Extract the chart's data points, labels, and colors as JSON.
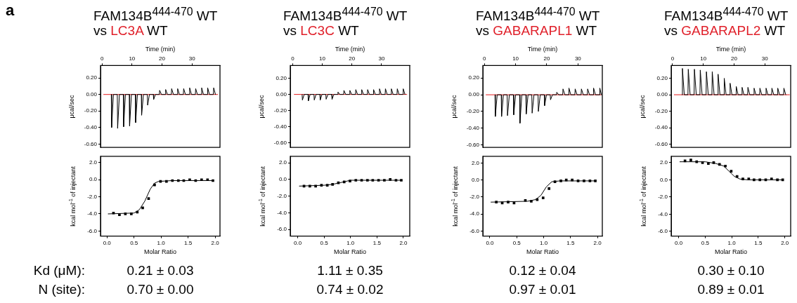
{
  "chart_data": [
    {
      "type": "line",
      "title": "FAM134B$^{444-470}$ WT",
      "subtitle": "vs LC3A WT",
      "xlabel": "Time (min)",
      "ylabel": "μcal/sec",
      "marker": "none",
      "annotations": [
        "a"
      ],
      "xlim": [
        -0.5,
        39.3
      ],
      "xticks": [
        0,
        10,
        20,
        30
      ],
      "ylim": [
        -0.64,
        0.35
      ],
      "yticks": [
        {
          "value": 0.2,
          "label": "0.20"
        },
        {
          "value": 0,
          "label": "0.00"
        },
        {
          "value": -0.2,
          "label": "-0.20"
        },
        {
          "value": -0.4,
          "label": "-0.40"
        },
        {
          "value": -0.6,
          "label": "-0.60"
        }
      ],
      "series": [
        {
          "color": "#000000",
          "x": [
            3.1,
            3.2,
            3.8,
            5.1,
            5.2,
            5.8,
            7.1,
            7.2,
            7.8,
            9.1,
            9.2,
            9.8,
            11.1,
            11.2,
            11.8,
            13.1,
            13.2,
            13.8,
            15.1,
            15.2,
            15.8,
            17.1,
            17.2,
            17.8,
            19.1,
            19.2,
            19.8,
            21.1,
            21.2,
            21.8,
            23.1,
            23.2,
            23.8,
            25.1,
            25.2,
            25.8,
            27.1,
            27.2,
            27.8,
            29.1,
            29.2,
            29.8,
            31.1,
            31.2,
            31.8,
            33.1,
            33.2,
            33.8,
            35.1,
            35.2,
            35.8,
            37.1,
            37.2,
            37.8
          ],
          "values": [
            0,
            -0.4,
            0,
            0,
            -0.41,
            0,
            0,
            -0.39,
            0,
            0,
            -0.38,
            0,
            0,
            -0.34,
            0,
            0,
            -0.25,
            0,
            0,
            -0.13,
            0,
            0,
            -0.06,
            0,
            0,
            0.05,
            0,
            0,
            0.06,
            0,
            0,
            0.07,
            0,
            0,
            0.07,
            0,
            0,
            0.07,
            0,
            0,
            0.08,
            0,
            0,
            0.07,
            0,
            0,
            0.08,
            0,
            0,
            0.08,
            0,
            0,
            0.08,
            0
          ]
        },
        {
          "color": "#e41a1c",
          "x": [
            0.5,
            38.5
          ],
          "values": [
            0,
            0
          ]
        }
      ]
    },
    {
      "type": "scatter",
      "xlabel": "Molar Ratio",
      "ylabel": "kcal mol$^{-1}$ of injectant",
      "marker": "square",
      "annotations": [
        "Kd (μM):",
        "N (site):",
        "0.21 ± 0.03",
        "0.70 ± 0.00"
      ],
      "xlim": [
        -0.12,
        2.09
      ],
      "xticks": [
        {
          "value": 0,
          "label": "0.0"
        },
        0.5,
        {
          "value": 1,
          "label": "1.0"
        },
        1.5,
        {
          "value": 2,
          "label": "2.0"
        }
      ],
      "ylim": [
        -6.6,
        2.75
      ],
      "yticks": [
        {
          "value": 2,
          "label": "2.0"
        },
        {
          "value": 0,
          "label": "0.0"
        },
        {
          "value": -2,
          "label": "-2.0"
        },
        {
          "value": -4,
          "label": "-4.0"
        },
        {
          "value": -6,
          "label": "-6.0"
        }
      ],
      "x": [
        0.12,
        0.23,
        0.34,
        0.45,
        0.56,
        0.66,
        0.77,
        0.88,
        0.99,
        1.1,
        1.21,
        1.32,
        1.42,
        1.53,
        1.64,
        1.75,
        1.86,
        1.96
      ],
      "series": [
        {
          "color": "#000000",
          "values": [
            -3.9,
            -4.1,
            -4.0,
            -4.0,
            -3.8,
            -3.3,
            -2.2,
            -0.6,
            -0.2,
            -0.2,
            -0.1,
            -0.1,
            -0.1,
            0.0,
            -0.1,
            0.0,
            0.0,
            -0.1
          ]
        },
        {
          "type": "line",
          "marker": "none",
          "color": "#000000",
          "x": [
            0.02,
            0.5,
            0.6,
            0.7,
            0.8,
            0.88,
            0.95,
            1.2,
            1.96
          ],
          "values": [
            -4.0,
            -3.9,
            -3.5,
            -2.5,
            -1.1,
            -0.4,
            -0.2,
            -0.1,
            -0.1
          ]
        }
      ]
    },
    {
      "type": "line",
      "title": "FAM134B$^{444-470}$ WT",
      "subtitle": "vs LC3C WT",
      "xlabel": "Time (min)",
      "ylabel": "μcal/sec",
      "marker": "none",
      "xlim": [
        -0.8,
        39.5
      ],
      "xticks": [
        0,
        10,
        20,
        30
      ],
      "ylim": [
        -0.66,
        0.36
      ],
      "yticks": [
        {
          "value": 0.2,
          "label": "0.20"
        },
        {
          "value": 0,
          "label": "0.00"
        },
        {
          "value": -0.2,
          "label": "-0.20"
        },
        {
          "value": -0.4,
          "label": "-0.40"
        },
        {
          "value": -0.6,
          "label": "-0.60"
        }
      ],
      "series": [
        {
          "color": "#000000",
          "x": [
            3.2,
            3.3,
            3.9,
            5.2,
            5.3,
            5.9,
            7.2,
            7.3,
            7.9,
            9.2,
            9.3,
            9.9,
            11.2,
            11.3,
            11.9,
            13.2,
            13.3,
            13.9,
            15.2,
            15.3,
            15.9,
            17.2,
            17.3,
            17.9,
            19.2,
            19.3,
            19.9,
            21.2,
            21.3,
            21.9,
            23.2,
            23.3,
            23.9,
            25.2,
            25.3,
            25.9,
            27.2,
            27.3,
            27.9,
            29.2,
            29.3,
            29.9,
            31.2,
            31.3,
            31.9,
            33.2,
            33.3,
            33.9,
            35.2,
            35.3,
            35.9,
            37.2,
            37.3,
            37.9
          ],
          "values": [
            0,
            -0.07,
            0,
            0,
            -0.08,
            0,
            0,
            -0.07,
            0,
            0,
            -0.07,
            0,
            0,
            -0.06,
            0,
            0,
            -0.06,
            0,
            0,
            0.03,
            0,
            0,
            0.05,
            0,
            0,
            0.05,
            0,
            0,
            0.06,
            0,
            0,
            0.06,
            0,
            0,
            0.06,
            0,
            0,
            0.06,
            0,
            0,
            0.07,
            0,
            0,
            0.07,
            0,
            0,
            0.07,
            0,
            0,
            0.07,
            0,
            0,
            0.07,
            0
          ]
        },
        {
          "color": "#e41a1c",
          "x": [
            0.5,
            38.5
          ],
          "values": [
            0,
            0
          ]
        }
      ]
    },
    {
      "type": "scatter",
      "xlabel": "Molar Ratio",
      "ylabel": "kcal mol$^{-1}$ of injectant",
      "marker": "square",
      "annotations": [
        "1.11 ± 0.35",
        "0.74 ± 0.02"
      ],
      "xlim": [
        -0.14,
        2.12
      ],
      "xticks": [
        {
          "value": 0,
          "label": "0.0"
        },
        0.5,
        {
          "value": 1,
          "label": "1.0"
        },
        1.5,
        {
          "value": 2,
          "label": "2.0"
        }
      ],
      "ylim": [
        -6.8,
        2.78
      ],
      "yticks": [
        {
          "value": 2,
          "label": "2.0"
        },
        {
          "value": 0,
          "label": "0.0"
        },
        {
          "value": -2,
          "label": "-2.0"
        },
        {
          "value": -4,
          "label": "-4.0"
        },
        {
          "value": -6,
          "label": "-6.0"
        }
      ],
      "x": [
        0.12,
        0.23,
        0.34,
        0.45,
        0.56,
        0.66,
        0.77,
        0.88,
        0.99,
        1.1,
        1.21,
        1.32,
        1.42,
        1.53,
        1.64,
        1.75,
        1.86,
        1.96
      ],
      "series": [
        {
          "color": "#000000",
          "values": [
            -0.8,
            -0.8,
            -0.8,
            -0.7,
            -0.7,
            -0.6,
            -0.4,
            -0.3,
            -0.2,
            -0.1,
            -0.1,
            -0.1,
            -0.1,
            -0.1,
            -0.1,
            0.0,
            -0.1,
            -0.1
          ]
        },
        {
          "type": "line",
          "marker": "none",
          "color": "#000000",
          "x": [
            0.03,
            0.5,
            0.65,
            0.8,
            1.0,
            1.3,
            1.96
          ],
          "values": [
            -0.8,
            -0.7,
            -0.6,
            -0.4,
            -0.1,
            -0.1,
            -0.1
          ]
        }
      ]
    },
    {
      "type": "line",
      "title": "FAM134B$^{444-470}$ WT",
      "subtitle": "vs GABARAPL1 WT",
      "xlabel": "Time (min)",
      "ylabel": "μcal/sec",
      "marker": "none",
      "xlim": [
        -0.5,
        37.8
      ],
      "xticks": [
        0,
        10,
        20,
        30
      ],
      "ylim": [
        -0.63,
        0.35
      ],
      "yticks": [
        {
          "value": 0.2,
          "label": "0.20"
        },
        {
          "value": 0,
          "label": "0.00"
        },
        {
          "value": -0.2,
          "label": "-0.20"
        },
        {
          "value": -0.4,
          "label": "-0.40"
        },
        {
          "value": -0.6,
          "label": "-0.60"
        }
      ],
      "series": [
        {
          "color": "#000000",
          "x": [
            3.4,
            3.5,
            4.1,
            5.4,
            5.5,
            6.1,
            7.3,
            7.4,
            8.0,
            9.3,
            9.4,
            10.0,
            11.3,
            11.4,
            12.0,
            13.3,
            13.4,
            14.0,
            15.2,
            15.3,
            15.9,
            17.2,
            17.3,
            17.9,
            19.2,
            19.3,
            19.9,
            21.1,
            21.2,
            21.8,
            23.1,
            23.2,
            23.8,
            25.1,
            25.2,
            25.8,
            27.0,
            27.1,
            27.7,
            29.0,
            29.1,
            29.7,
            31.0,
            31.1,
            31.7,
            33.0,
            33.1,
            33.7,
            34.9,
            35.0,
            35.6,
            36.9,
            37.0,
            37.5
          ],
          "values": [
            0,
            -0.26,
            0,
            0,
            -0.26,
            0,
            0,
            -0.25,
            0,
            0,
            -0.24,
            0,
            0,
            -0.34,
            0,
            0,
            -0.23,
            0,
            0,
            -0.22,
            0,
            0,
            -0.2,
            0,
            0,
            -0.13,
            0,
            0,
            -0.06,
            0,
            0,
            0.03,
            0,
            0,
            0.07,
            0,
            0,
            0.08,
            0,
            0,
            0.07,
            0,
            0,
            0.07,
            0,
            0,
            0.07,
            0,
            0,
            0.08,
            0,
            0,
            0.08,
            0
          ]
        },
        {
          "color": "#e41a1c",
          "x": [
            0.5,
            37.5
          ],
          "values": [
            0,
            0
          ]
        }
      ]
    },
    {
      "type": "scatter",
      "xlabel": "Molar Ratio",
      "ylabel": "kcal mol$^{-1}$ of injectant",
      "marker": "square",
      "annotations": [
        "0.12 ± 0.04",
        "0.97 ± 0.01"
      ],
      "xlim": [
        -0.13,
        2.09
      ],
      "xticks": [
        {
          "value": 0,
          "label": "0.0"
        },
        0.5,
        {
          "value": 1,
          "label": "1.0"
        },
        1.5,
        {
          "value": 2,
          "label": "2.0"
        }
      ],
      "ylim": [
        -6.6,
        2.8
      ],
      "yticks": [
        {
          "value": 2,
          "label": "2.0"
        },
        {
          "value": 0,
          "label": "0.0"
        },
        {
          "value": -2,
          "label": "-2.0"
        },
        {
          "value": -4,
          "label": "-4.0"
        },
        {
          "value": -6,
          "label": "-6.0"
        }
      ],
      "x": [
        0.12,
        0.23,
        0.34,
        0.45,
        0.56,
        0.66,
        0.77,
        0.88,
        0.99,
        1.1,
        1.21,
        1.32,
        1.42,
        1.53,
        1.64,
        1.75,
        1.86,
        1.96
      ],
      "series": [
        {
          "color": "#000000",
          "values": [
            -2.6,
            -2.7,
            -2.6,
            -2.7,
            null,
            -2.4,
            -2.5,
            -2.3,
            -2.1,
            -1.0,
            -0.2,
            -0.1,
            0.0,
            0.0,
            -0.1,
            -0.1,
            -0.1,
            -0.1
          ]
        },
        {
          "type": "line",
          "marker": "none",
          "color": "#000000",
          "x": [
            0.02,
            0.7,
            0.85,
            0.95,
            1.05,
            1.15,
            1.3,
            1.96
          ],
          "values": [
            -2.6,
            -2.5,
            -2.3,
            -1.8,
            -0.8,
            -0.2,
            -0.1,
            -0.1
          ]
        }
      ]
    },
    {
      "type": "line",
      "title": "FAM134B$^{444-470}$ WT",
      "subtitle": "vs GABARAPL2 WT",
      "xlabel": "Time (min)",
      "ylabel": "μcal/sec",
      "marker": "none",
      "xlim": [
        -0.45,
        38.4
      ],
      "xticks": [
        0,
        10,
        20,
        30
      ],
      "ylim": [
        -0.64,
        0.355
      ],
      "yticks": [
        {
          "value": 0.2,
          "label": "0.20"
        },
        {
          "value": 0,
          "label": "0.00"
        },
        {
          "value": -0.2,
          "label": "-0.20"
        },
        {
          "value": -0.4,
          "label": "-0.40"
        },
        {
          "value": -0.6,
          "label": "-0.60"
        }
      ],
      "series": [
        {
          "color": "#000000",
          "x": [
            3.1,
            3.2,
            3.8,
            5.0,
            5.1,
            5.7,
            7.0,
            7.1,
            7.7,
            8.9,
            9.0,
            9.6,
            10.9,
            11.0,
            11.6,
            12.8,
            12.9,
            13.5,
            14.7,
            14.8,
            15.4,
            16.7,
            16.8,
            17.4,
            18.6,
            18.7,
            19.3,
            20.6,
            20.7,
            21.3,
            22.5,
            22.6,
            23.2,
            24.4,
            24.5,
            25.1,
            26.4,
            26.5,
            27.1,
            28.3,
            28.4,
            29.0,
            30.3,
            30.4,
            31.0,
            32.2,
            32.3,
            32.9,
            34.1,
            34.2,
            34.8,
            36.1,
            36.2,
            36.8
          ],
          "values": [
            0,
            0.32,
            0,
            0,
            0.31,
            0,
            0,
            0.31,
            0,
            0,
            0.3,
            0,
            0,
            0.28,
            0,
            0,
            0.28,
            0,
            0,
            0.25,
            0,
            0,
            0.2,
            0,
            0,
            0.14,
            0,
            0,
            0.1,
            0,
            0,
            0.09,
            0,
            0,
            0.09,
            0,
            0,
            0.08,
            0,
            0,
            0.08,
            0,
            0,
            0.08,
            0,
            0,
            0.08,
            0,
            0,
            0.08,
            0,
            0,
            0.08,
            0
          ]
        },
        {
          "color": "#e41a1c",
          "x": [
            0.5,
            38.0
          ],
          "values": [
            0,
            0
          ]
        }
      ]
    },
    {
      "type": "scatter",
      "xlabel": "Molar Ratio",
      "ylabel": "kcal mol$^{-1}$ of injectant",
      "marker": "square",
      "annotations": [
        "0.30 ± 0.10",
        "0.89 ± 0.01"
      ],
      "xlim": [
        -0.14,
        2.11
      ],
      "xticks": [
        {
          "value": 0,
          "label": "0.0"
        },
        0.5,
        {
          "value": 1,
          "label": "1.0"
        },
        1.5,
        {
          "value": 2,
          "label": "2.0"
        }
      ],
      "ylim": [
        -6.54,
        2.74
      ],
      "yticks": [
        {
          "value": 2,
          "label": "2.0"
        },
        {
          "value": 0,
          "label": "0.0"
        },
        {
          "value": -2,
          "label": "-2.0"
        },
        {
          "value": -4,
          "label": "-4.0"
        },
        {
          "value": -6,
          "label": "-6.0"
        }
      ],
      "x": [
        0.12,
        0.23,
        0.34,
        0.45,
        0.56,
        0.66,
        0.77,
        0.88,
        0.99,
        1.1,
        1.21,
        1.32,
        1.42,
        1.53,
        1.64,
        1.75,
        1.86,
        1.96
      ],
      "series": [
        {
          "color": "#000000",
          "values": [
            2.2,
            2.3,
            2.1,
            2.0,
            1.9,
            2.0,
            1.8,
            1.6,
            1.0,
            0.4,
            0.1,
            0.1,
            0.0,
            0.0,
            0.0,
            0.1,
            0.0,
            0.0
          ]
        },
        {
          "type": "line",
          "marker": "none",
          "color": "#000000",
          "x": [
            0.02,
            0.5,
            0.7,
            0.85,
            0.95,
            1.05,
            1.15,
            1.3,
            1.96
          ],
          "values": [
            2.1,
            2.1,
            1.9,
            1.6,
            1.0,
            0.4,
            0.1,
            0.0,
            0.0
          ]
        }
      ]
    }
  ]
}
